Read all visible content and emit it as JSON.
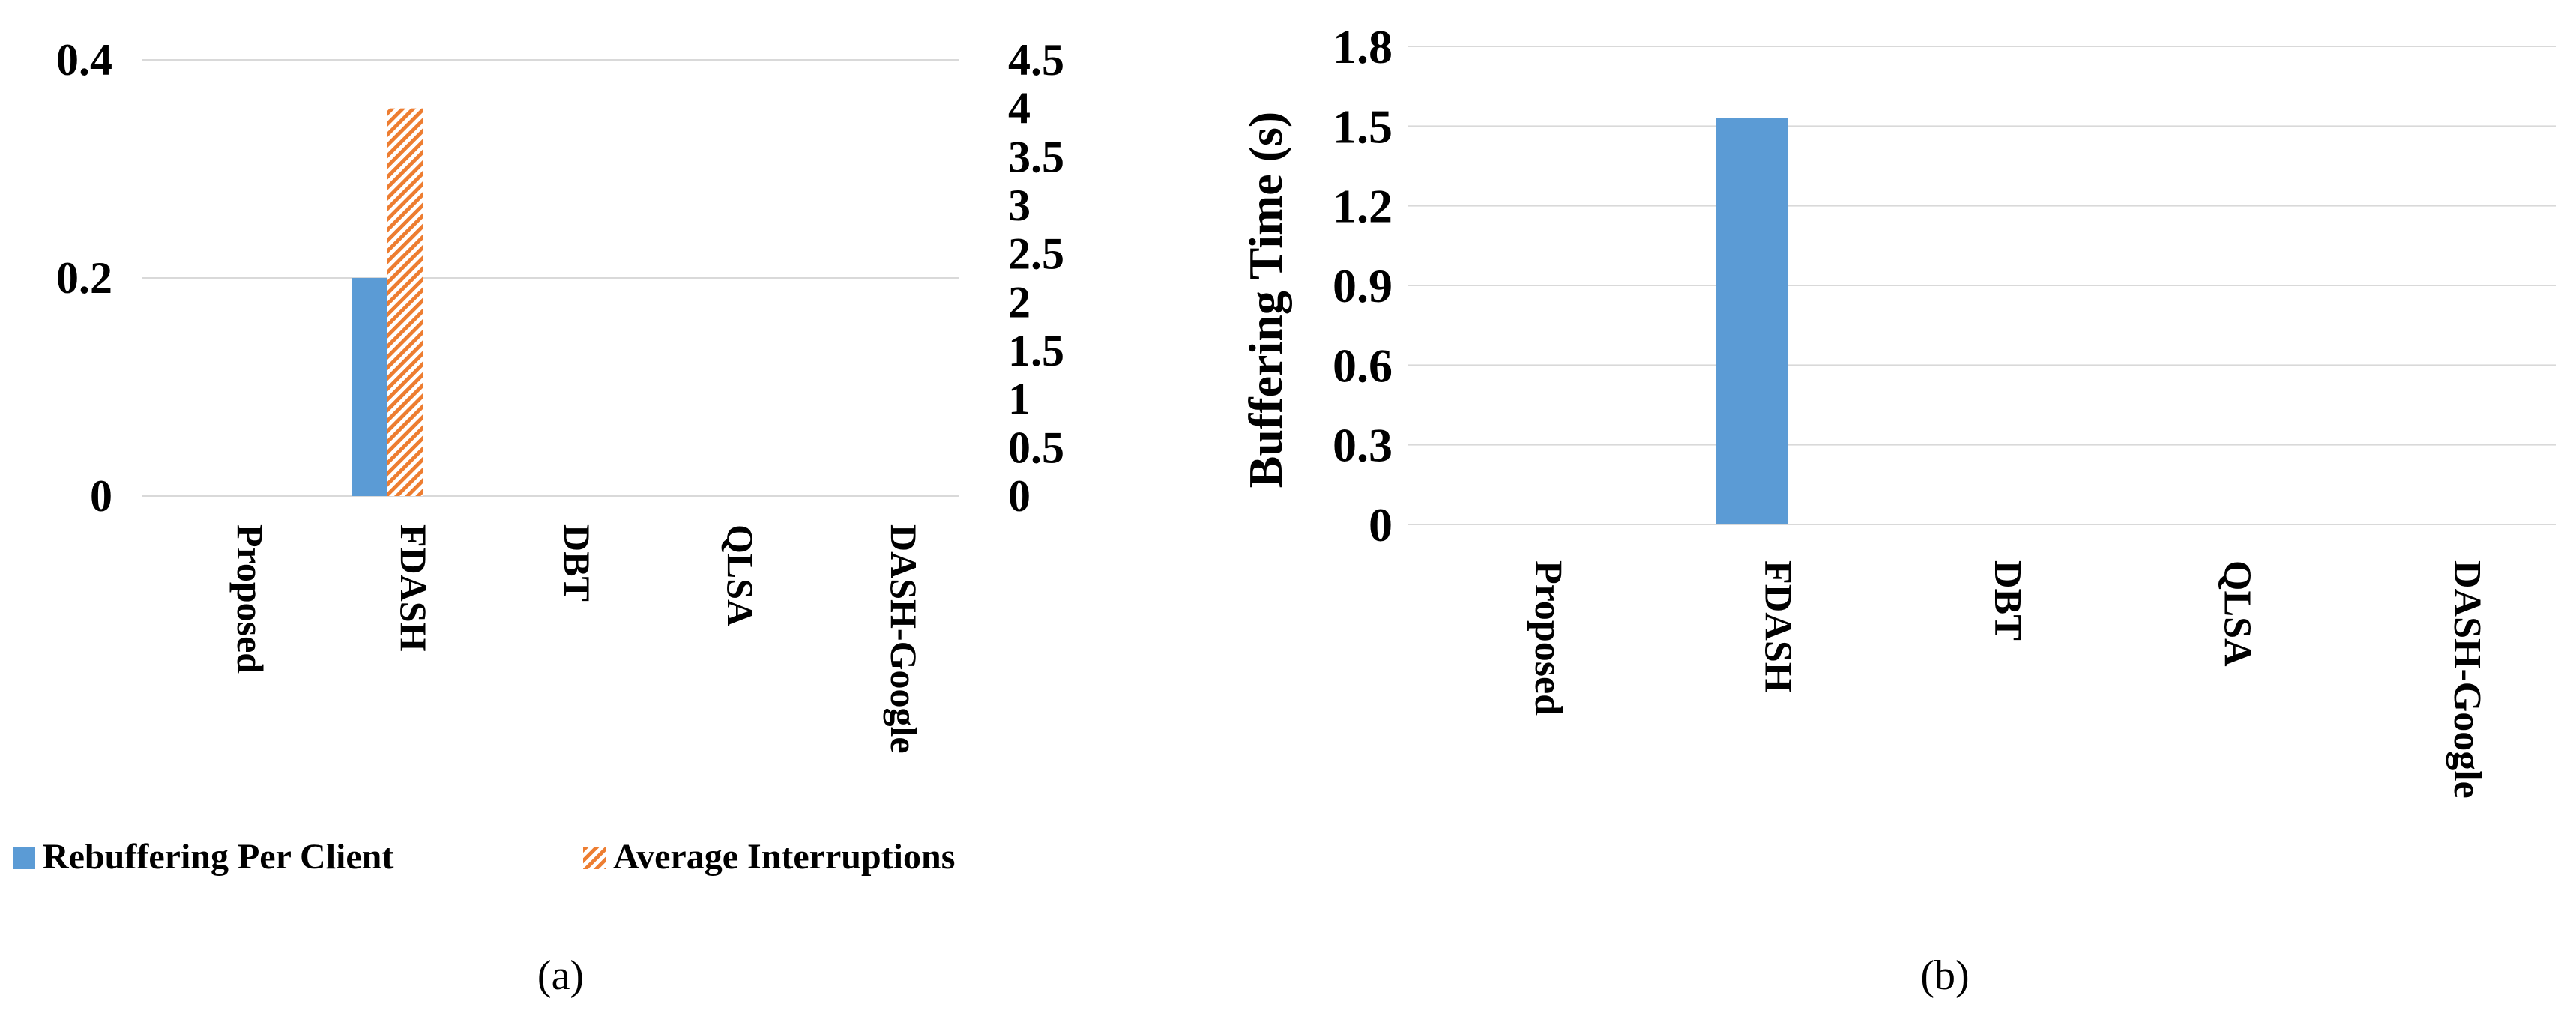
{
  "colors": {
    "primary_bar": "#5b9bd5",
    "hatch_bar": "#ed7d31",
    "grid": "#d9d9d9"
  },
  "chart_data": [
    {
      "type": "bar",
      "caption": "(a)",
      "categories": [
        "Proposed",
        "FDASH",
        "DBT",
        "QLSA",
        "DASH-Google"
      ],
      "series": [
        {
          "name": "Rebuffering Per Client",
          "axis": "left",
          "values": [
            0,
            0.2,
            0,
            0,
            0
          ],
          "color": "#5b9bd5",
          "pattern": "solid"
        },
        {
          "name": "Average Interruptions",
          "axis": "right",
          "values": [
            0,
            4,
            0,
            0,
            0
          ],
          "color": "#ed7d31",
          "pattern": "diagonal-hatch"
        }
      ],
      "ylim_left": [
        0,
        0.4
      ],
      "yticks_left": [
        "0",
        "0.2",
        "0.4"
      ],
      "ylim_right": [
        0,
        4.5
      ],
      "yticks_right": [
        "0",
        "0.5",
        "1",
        "1.5",
        "2",
        "2.5",
        "3",
        "3.5",
        "4",
        "4.5"
      ],
      "legend": "bottom",
      "grid": true
    },
    {
      "type": "bar",
      "caption": "(b)",
      "categories": [
        "Proposed",
        "FDASH",
        "DBT",
        "QLSA",
        "DASH-Google"
      ],
      "series": [
        {
          "values": [
            0,
            1.53,
            0,
            0,
            0
          ],
          "color": "#5b9bd5",
          "pattern": "solid"
        }
      ],
      "ylabel": "Buffering Time (s)",
      "ylim": [
        0,
        1.8
      ],
      "yticks": [
        "0",
        "0.3",
        "0.6",
        "0.9",
        "1.2",
        "1.5",
        "1.8"
      ],
      "grid": true
    }
  ]
}
